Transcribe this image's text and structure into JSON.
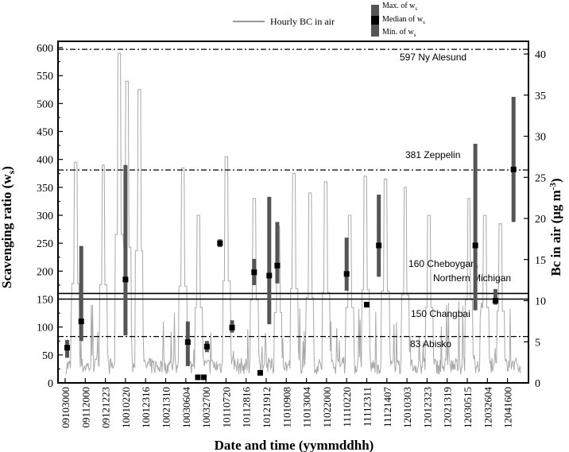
{
  "chart_data": {
    "type": "scatter",
    "xlabel": "Date and time (yymmddhh)",
    "ylabel_left": "Scavenging ratio (w",
    "ylabel_left_sub": "s",
    "ylabel_left_close": ")",
    "ylabel_right": "Bc in air (μg m",
    "ylabel_right_sup": "-3",
    "ylabel_right_close": ")",
    "ylim_left": [
      0,
      600
    ],
    "ylim_right": [
      0,
      41
    ],
    "yticks_left": [
      0,
      50,
      100,
      150,
      200,
      250,
      300,
      350,
      400,
      450,
      500,
      550,
      600
    ],
    "yticks_right": [
      0,
      5,
      10,
      15,
      20,
      25,
      30,
      35,
      40
    ],
    "xticks": [
      "09103000",
      "09112000",
      "09121223",
      "10010220",
      "10012316",
      "10021310",
      "10030604",
      "10032700",
      "10110720",
      "10112816",
      "10121912",
      "11010908",
      "11013004",
      "11022000",
      "11110220",
      "11112311",
      "11121407",
      "12010303",
      "12012323",
      "12021319",
      "12030515",
      "12032604",
      "12041600"
    ],
    "legend": {
      "line": "Hourly BC in air",
      "max": "Max. of w",
      "max_sub": "s",
      "median": "Median of w",
      "median_sub": "s",
      "min": "Min. of w",
      "min_sub": "s"
    },
    "reference_lines": [
      {
        "value": 597,
        "label": "597 Ny Alesund",
        "style": "dashdot"
      },
      {
        "value": 381,
        "label": "381 Zeppelin",
        "style": "dashdot"
      },
      {
        "value": 160,
        "label_lines": [
          "160 Cheboygan,",
          "Northern Michigan"
        ],
        "style": "solid"
      },
      {
        "value": 150,
        "label": "150 Changbai",
        "style": "solid"
      },
      {
        "value": 83,
        "label": "83 Abisko",
        "style": "dashdot"
      }
    ],
    "x_index_range": [
      0,
      23
    ],
    "ws_events": [
      {
        "x": 0.1,
        "min": 45,
        "median": 63,
        "max": 77
      },
      {
        "x": 0.8,
        "min": 75,
        "median": 110,
        "max": 245
      },
      {
        "x": 3.0,
        "min": 85,
        "median": 185,
        "max": 390
      },
      {
        "x": 6.1,
        "min": 30,
        "median": 73,
        "max": 110
      },
      {
        "x": 6.6,
        "min": 8,
        "median": 10,
        "max": 12
      },
      {
        "x": 6.9,
        "min": 8,
        "median": 10,
        "max": 12
      },
      {
        "x": 7.05,
        "min": 55,
        "median": 65,
        "max": 75
      },
      {
        "x": 7.7,
        "min": 243,
        "median": 250,
        "max": 257
      },
      {
        "x": 8.3,
        "min": 90,
        "median": 99,
        "max": 112
      },
      {
        "x": 9.4,
        "min": 175,
        "median": 198,
        "max": 222
      },
      {
        "x": 9.7,
        "min": 15,
        "median": 18,
        "max": 20
      },
      {
        "x": 10.15,
        "min": 105,
        "median": 192,
        "max": 333
      },
      {
        "x": 10.55,
        "min": 178,
        "median": 210,
        "max": 288
      },
      {
        "x": 14.0,
        "min": 165,
        "median": 195,
        "max": 260
      },
      {
        "x": 15.0,
        "min": 135,
        "median": 140,
        "max": 145
      },
      {
        "x": 15.6,
        "min": 190,
        "median": 246,
        "max": 337
      },
      {
        "x": 20.4,
        "min": 130,
        "median": 246,
        "max": 428
      },
      {
        "x": 21.4,
        "min": 140,
        "median": 147,
        "max": 168
      },
      {
        "x": 22.3,
        "min": 288,
        "median": 382,
        "max": 512
      }
    ]
  }
}
